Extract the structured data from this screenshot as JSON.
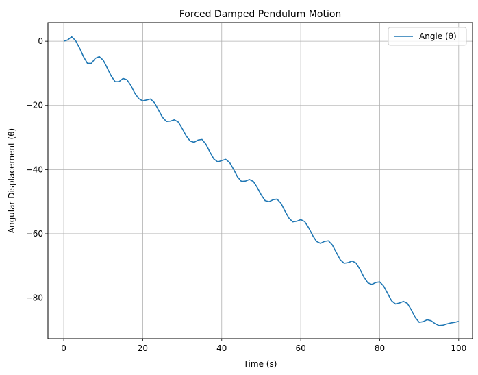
{
  "chart_data": {
    "type": "line",
    "title": "Forced Damped Pendulum Motion",
    "xlabel": "Time (s)",
    "ylabel": "Angular Displacement (θ)",
    "xlim": [
      -4,
      103.5
    ],
    "ylim": [
      -92.7,
      5.8
    ],
    "xticks": [
      0,
      20,
      40,
      60,
      80,
      100
    ],
    "yticks": [
      0,
      -20,
      -40,
      -60,
      -80
    ],
    "xtick_labels": [
      "0",
      "20",
      "40",
      "60",
      "80",
      "100"
    ],
    "ytick_labels": [
      "0",
      "−20",
      "−40",
      "−60",
      "−80"
    ],
    "grid": true,
    "legend": {
      "position": "top-right"
    },
    "series": [
      {
        "name": "Angle (θ)",
        "color": "#1f77b4",
        "x": [
          0,
          1,
          2,
          3,
          4,
          5,
          6,
          7,
          8,
          9,
          10,
          11,
          12,
          13,
          14,
          15,
          16,
          17,
          18,
          19,
          20,
          21,
          22,
          23,
          24,
          25,
          26,
          27,
          28,
          29,
          30,
          31,
          32,
          33,
          34,
          35,
          36,
          37,
          38,
          39,
          40,
          41,
          42,
          43,
          44,
          45,
          46,
          47,
          48,
          49,
          50,
          51,
          52,
          53,
          54,
          55,
          56,
          57,
          58,
          59,
          60,
          61,
          62,
          63,
          64,
          65,
          66,
          67,
          68,
          69,
          70,
          71,
          72,
          73,
          74,
          75,
          76,
          77,
          78,
          79,
          80,
          81,
          82,
          83,
          84,
          85,
          86,
          87,
          88,
          89,
          90,
          91,
          92,
          93,
          94,
          95,
          96,
          97,
          98,
          99,
          100
        ],
        "y": [
          0.0,
          0.4,
          1.4,
          0.2,
          -2.1,
          -4.8,
          -6.9,
          -6.9,
          -5.3,
          -4.8,
          -5.9,
          -8.3,
          -10.8,
          -12.6,
          -12.6,
          -11.6,
          -12.0,
          -13.8,
          -16.2,
          -17.9,
          -18.6,
          -18.3,
          -18.0,
          -19.2,
          -21.5,
          -23.7,
          -25.0,
          -24.9,
          -24.5,
          -25.2,
          -27.2,
          -29.5,
          -31.1,
          -31.5,
          -30.8,
          -30.6,
          -32.1,
          -34.5,
          -36.7,
          -37.6,
          -37.2,
          -36.8,
          -37.8,
          -39.9,
          -42.3,
          -43.7,
          -43.6,
          -43.1,
          -43.7,
          -45.6,
          -47.9,
          -49.7,
          -50.0,
          -49.4,
          -49.2,
          -50.5,
          -52.9,
          -55.1,
          -56.3,
          -56.1,
          -55.6,
          -56.2,
          -58.1,
          -60.5,
          -62.4,
          -63.0,
          -62.4,
          -62.2,
          -63.5,
          -65.8,
          -68.1,
          -69.2,
          -69.0,
          -68.5,
          -69.1,
          -71.1,
          -73.5,
          -75.3,
          -75.8,
          -75.2,
          -75.0,
          -76.3,
          -78.6,
          -80.9,
          -81.9,
          -81.6,
          -81.1,
          -81.7,
          -83.7,
          -86.1,
          -87.6,
          -87.4,
          -86.8,
          -87.1,
          -88.0,
          -88.6,
          -88.5,
          -88.1,
          -87.8,
          -87.6,
          -87.3
        ]
      }
    ]
  }
}
